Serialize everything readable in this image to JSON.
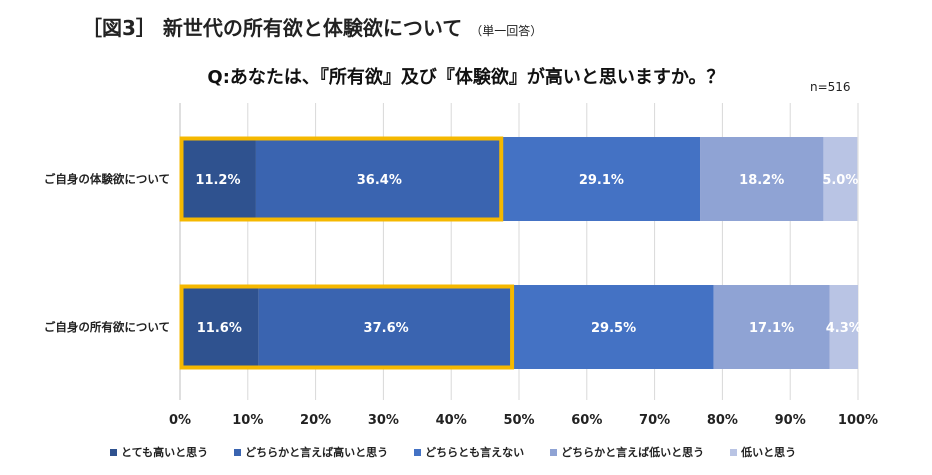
{
  "figure_title": "［図3］ 新世代の所有欲と体験欲について",
  "figure_subtitle": "（単一回答）",
  "question": "Q:あなたは、『所有欲』及び『体験欲』が高いと思いますか。？",
  "sample_size": "n=516",
  "chart_data": {
    "type": "bar",
    "orientation": "horizontal",
    "stacked": true,
    "percent_stacked": true,
    "categories": [
      "ご自身の体験欲について",
      "ご自身の所有欲について"
    ],
    "series": [
      {
        "name": "とても高いと思う",
        "values": [
          11.2,
          11.6
        ],
        "labels": [
          "11.2%",
          "11.6%"
        ],
        "color": "#2F528F"
      },
      {
        "name": "どちらかと言えば高いと思う",
        "values": [
          36.4,
          37.6
        ],
        "labels": [
          "36.4%",
          "37.6%"
        ],
        "color": "#3A64B0"
      },
      {
        "name": "どちらとも言えない",
        "values": [
          29.1,
          29.5
        ],
        "labels": [
          "29.1%",
          "29.5%"
        ],
        "color": "#4472C4"
      },
      {
        "name": "どちらかと言えば低いと思う",
        "values": [
          18.2,
          17.1
        ],
        "labels": [
          "18.2%",
          "17.1%"
        ],
        "color": "#8FA3D4"
      },
      {
        "name": "低いと思う",
        "values": [
          5.0,
          4.3
        ],
        "labels": [
          "5.0%",
          "4.3%"
        ],
        "color": "#B9C4E4"
      }
    ],
    "xlim": [
      0,
      100
    ],
    "x_ticks": [
      "0%",
      "10%",
      "20%",
      "30%",
      "40%",
      "50%",
      "60%",
      "70%",
      "80%",
      "90%",
      "100%"
    ],
    "grid": true,
    "legend_position": "bottom",
    "highlight": {
      "series_range": [
        0,
        1
      ],
      "color": "#F5B800"
    }
  }
}
